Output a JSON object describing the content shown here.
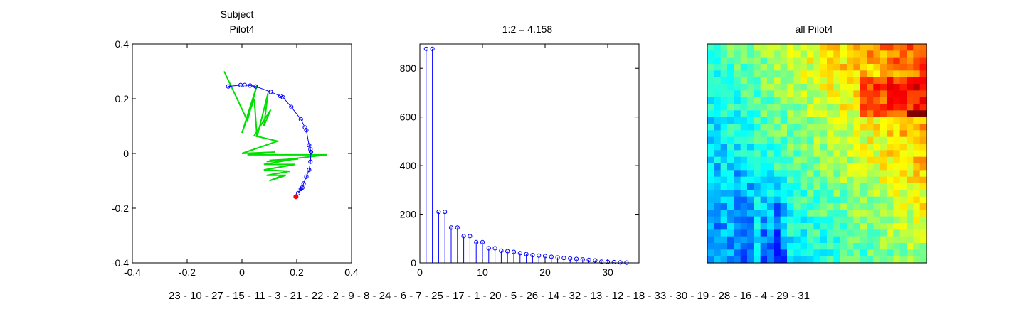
{
  "chart_data": [
    {
      "type": "scatter",
      "title_line1": "Subject",
      "title_line2": "Pilot4",
      "xlim": [
        -0.4,
        0.4
      ],
      "ylim": [
        -0.4,
        0.4
      ],
      "xticks": [
        -0.4,
        -0.2,
        0,
        0.2,
        0.4
      ],
      "yticks": [
        -0.4,
        -0.2,
        0,
        0.2,
        0.4
      ],
      "xtick_labels": [
        "-0.4",
        "-0.2",
        "0",
        "0.2",
        "0.4"
      ],
      "ytick_labels": [
        "-0.4",
        "-0.2",
        "0",
        "0.2",
        "0.4"
      ],
      "series": [
        {
          "role": "embedding-points",
          "color": "#0000ff",
          "points": [
            [
              -0.05,
              0.245
            ],
            [
              -0.005,
              0.25
            ],
            [
              0.01,
              0.25
            ],
            [
              0.03,
              0.248
            ],
            [
              0.05,
              0.245
            ],
            [
              0.105,
              0.225
            ],
            [
              0.14,
              0.21
            ],
            [
              0.15,
              0.205
            ],
            [
              0.18,
              0.17
            ],
            [
              0.215,
              0.125
            ],
            [
              0.23,
              0.095
            ],
            [
              0.235,
              0.085
            ],
            [
              0.245,
              0.03
            ],
            [
              0.25,
              0.015
            ],
            [
              0.252,
              0.005
            ],
            [
              0.25,
              -0.03
            ],
            [
              0.245,
              -0.06
            ],
            [
              0.235,
              -0.085
            ],
            [
              0.225,
              -0.11
            ],
            [
              0.22,
              -0.125
            ],
            [
              0.215,
              -0.13
            ],
            [
              0.205,
              -0.145
            ]
          ]
        },
        {
          "role": "endpoint",
          "color": "#ff0000",
          "points": [
            [
              0.197,
              -0.158
            ]
          ]
        },
        {
          "role": "trajectory",
          "color": "#00e000",
          "points": [
            [
              -0.065,
              0.3
            ],
            [
              0.02,
              0.12
            ],
            [
              0.055,
              0.25
            ],
            [
              0.0,
              0.075
            ],
            [
              0.045,
              0.2
            ],
            [
              0.055,
              0.06
            ],
            [
              0.095,
              0.22
            ],
            [
              0.08,
              0.1
            ],
            [
              0.105,
              0.16
            ],
            [
              0.045,
              0.065
            ],
            [
              0.13,
              0.045
            ],
            [
              0.0,
              0.0
            ],
            [
              0.12,
              0.005
            ],
            [
              0.02,
              -0.005
            ],
            [
              0.31,
              -0.005
            ],
            [
              0.09,
              -0.03
            ],
            [
              0.205,
              -0.02
            ],
            [
              0.1,
              -0.025
            ],
            [
              0.195,
              -0.02
            ],
            [
              0.08,
              -0.04
            ],
            [
              0.195,
              -0.04
            ],
            [
              0.08,
              -0.06
            ],
            [
              0.175,
              -0.065
            ],
            [
              0.09,
              -0.08
            ],
            [
              0.16,
              -0.08
            ],
            [
              0.1,
              -0.1
            ],
            [
              0.15,
              -0.08
            ]
          ]
        }
      ]
    },
    {
      "type": "stem",
      "title": "1:2 = 4.158",
      "xlim": [
        0,
        35
      ],
      "ylim": [
        0,
        900
      ],
      "xticks": [
        0,
        10,
        20,
        30
      ],
      "yticks": [
        0,
        200,
        400,
        600,
        800
      ],
      "xtick_labels": [
        "0",
        "10",
        "20",
        "30"
      ],
      "ytick_labels": [
        "0",
        "200",
        "400",
        "600",
        "800"
      ],
      "color": "#0000ff",
      "x": [
        1,
        2,
        3,
        4,
        5,
        6,
        7,
        8,
        9,
        10,
        11,
        12,
        13,
        14,
        15,
        16,
        17,
        18,
        19,
        20,
        21,
        22,
        23,
        24,
        25,
        26,
        27,
        28,
        29,
        30,
        31,
        32,
        33
      ],
      "values": [
        880,
        880,
        210,
        210,
        145,
        145,
        110,
        110,
        85,
        85,
        60,
        60,
        50,
        48,
        45,
        40,
        36,
        32,
        30,
        28,
        25,
        22,
        20,
        18,
        16,
        14,
        12,
        10,
        5,
        4,
        3,
        2,
        1
      ]
    },
    {
      "type": "heatmap",
      "title": "all Pilot4",
      "rows": 33,
      "cols": 33,
      "colormap": "jet",
      "value_range": [
        0,
        1
      ],
      "values_generated_by": "estimate"
    }
  ],
  "order_text": "23 - 10 - 27 - 15 - 11 - 3 - 21 - 22 - 2 - 9 - 8 - 24 - 6 - 7 - 25 - 17 - 1 - 20 - 5 - 26 - 14 - 32 - 13 - 12 - 18 - 33 - 30 - 19 - 28 - 16 - 4 - 29 - 31"
}
